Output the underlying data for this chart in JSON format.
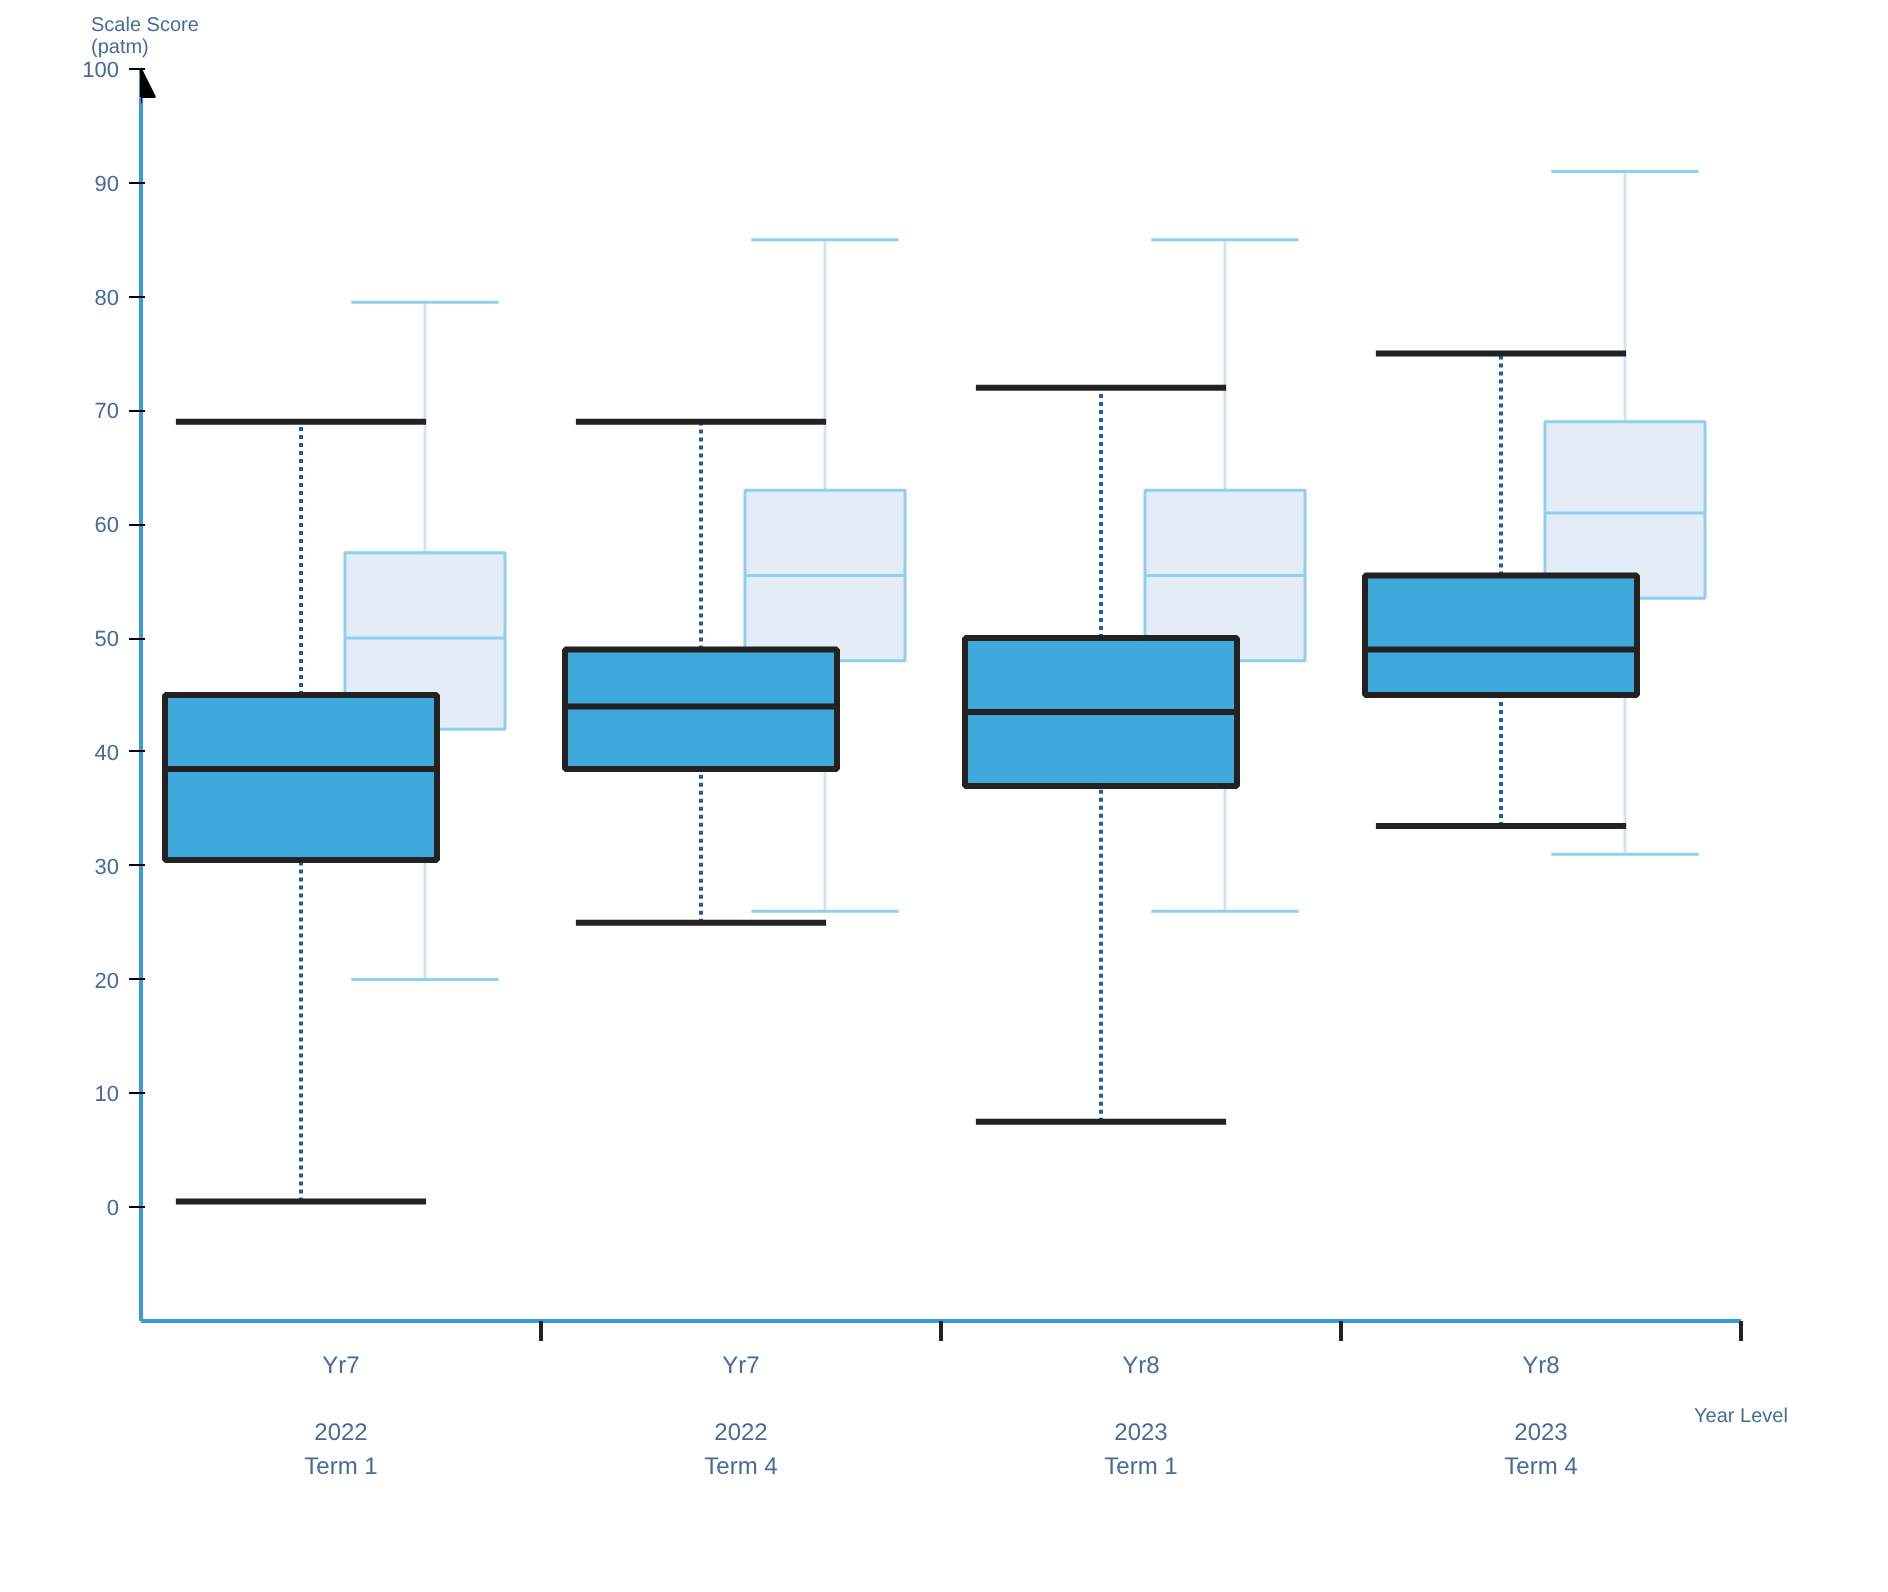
{
  "chart_data": {
    "type": "box",
    "ylabel": "Scale Score\n(patm)",
    "xlabel": "Year Level",
    "categories": [
      "Yr7",
      "Yr7",
      "Yr8",
      "Yr8"
    ],
    "annotations": [
      "2022\nTerm 1",
      "2022\nTerm 4",
      "2023\nTerm 1",
      "2023\nTerm 4"
    ],
    "ylim": [
      -10,
      100
    ],
    "yticks": [
      0,
      10,
      20,
      30,
      40,
      50,
      60,
      70,
      80,
      90,
      100
    ],
    "grid": false,
    "series": [
      {
        "color": "#e4edf7",
        "boxes": [
          {
            "low": 20,
            "q1": 42,
            "median": 50,
            "q3": 57.5,
            "high": 79.5
          },
          {
            "low": 26,
            "q1": 48,
            "median": 55.5,
            "q3": 63,
            "high": 85
          },
          {
            "low": 26,
            "q1": 48,
            "median": 55.5,
            "q3": 63,
            "high": 85
          },
          {
            "low": 31,
            "q1": 53.5,
            "median": 61,
            "q3": 69,
            "high": 91
          }
        ]
      },
      {
        "color": "#3fa9dc",
        "boxes": [
          {
            "low": 0.5,
            "q1": 30.5,
            "median": 38.5,
            "q3": 45,
            "high": 69
          },
          {
            "low": 25,
            "q1": 38.5,
            "median": 44,
            "q3": 49,
            "high": 69
          },
          {
            "low": 7.5,
            "q1": 37,
            "median": 43.5,
            "q3": 50,
            "high": 72
          },
          {
            "low": 33.5,
            "q1": 45,
            "median": 49,
            "q3": 55.5,
            "high": 75
          }
        ]
      }
    ]
  }
}
